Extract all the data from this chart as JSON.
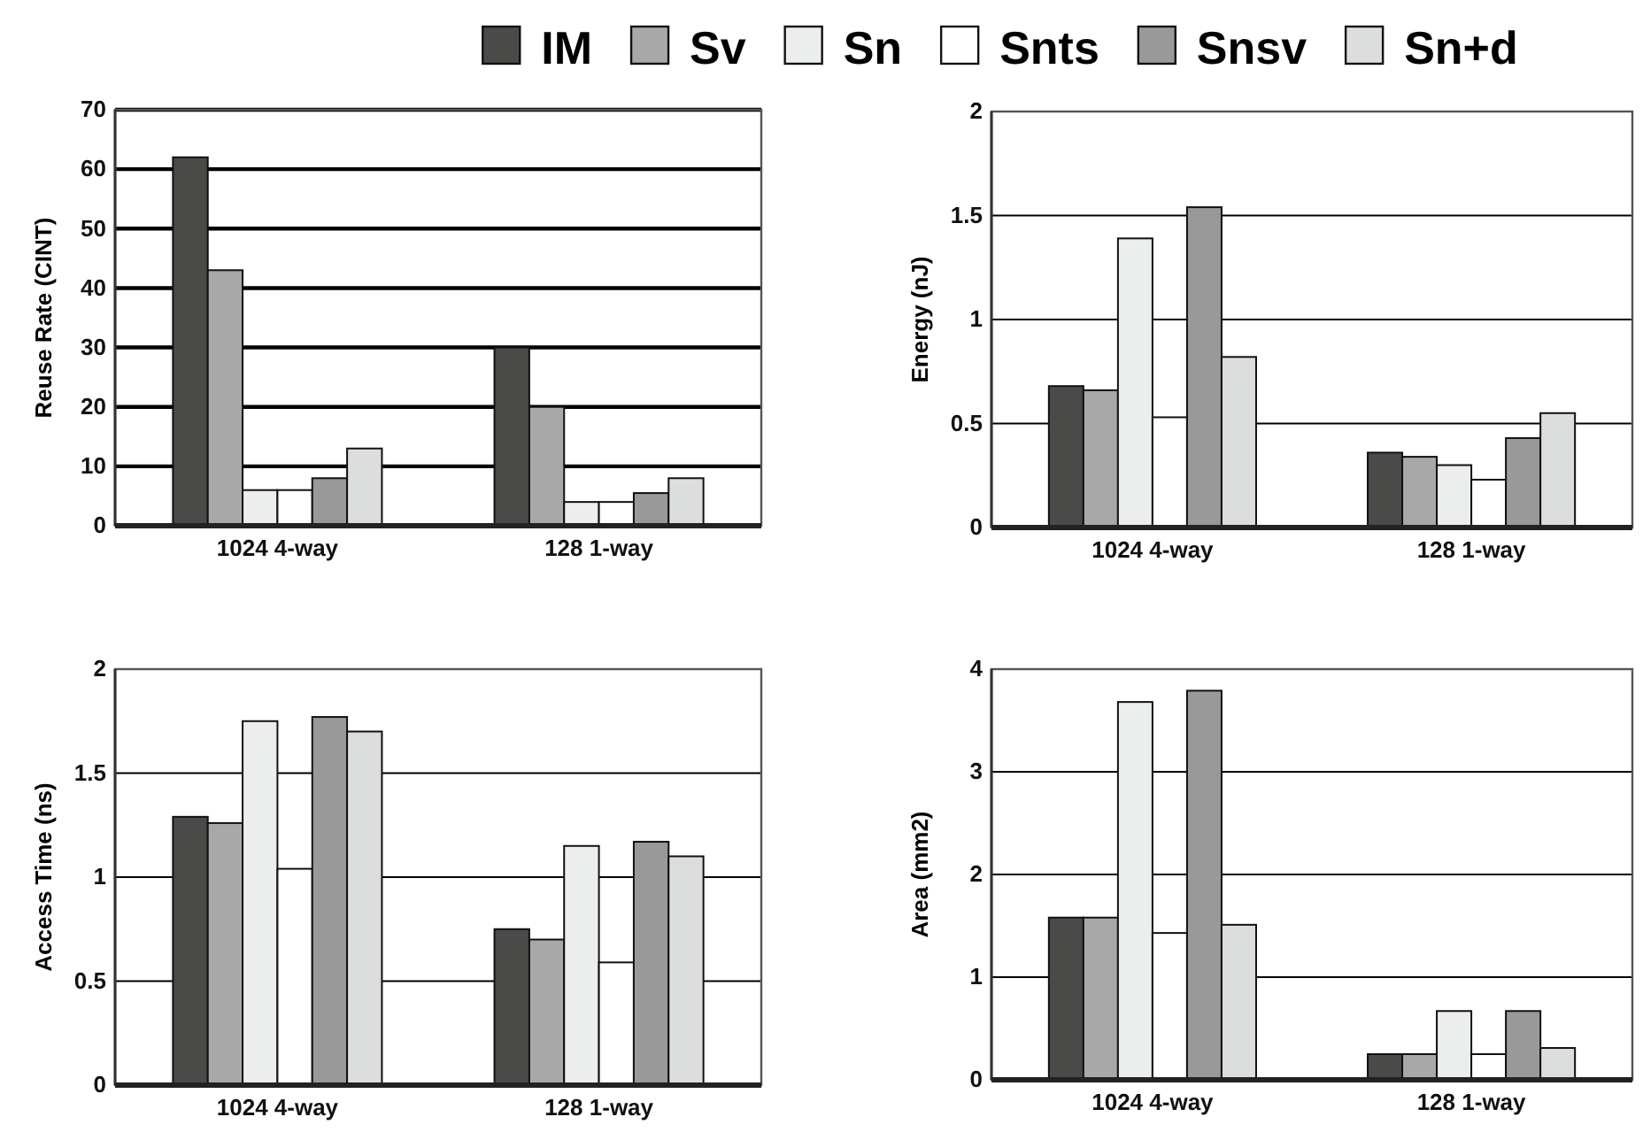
{
  "chart_data": [
    {
      "type": "bar",
      "ylabel": "Reuse Rate (CINT)",
      "categories": [
        "1024 4-way",
        "128 1-way"
      ],
      "ylim": [
        0,
        70
      ],
      "yticks": [
        0,
        10,
        20,
        30,
        40,
        50,
        60,
        70
      ],
      "grid": "y",
      "legend": "top",
      "series": [
        {
          "name": "IM",
          "color": "#4a4a48",
          "values": [
            62,
            30
          ]
        },
        {
          "name": "Sv",
          "color": "#a8a8a8",
          "values": [
            43,
            20
          ]
        },
        {
          "name": "Sn",
          "color": "#eceeed",
          "values": [
            6,
            4
          ]
        },
        {
          "name": "Snts",
          "color": "#ffffff",
          "values": [
            6,
            4
          ]
        },
        {
          "name": "Snsv",
          "color": "#989998",
          "values": [
            8,
            5.5
          ]
        },
        {
          "name": "Sn+d",
          "color": "#dcdedd",
          "values": [
            13,
            8
          ]
        }
      ]
    },
    {
      "type": "bar",
      "ylabel": "Energy (nJ)",
      "categories": [
        "1024 4-way",
        "128 1-way"
      ],
      "ylim": [
        0,
        2
      ],
      "yticks": [
        0,
        0.5,
        1,
        1.5,
        2
      ],
      "grid": "y",
      "series": [
        {
          "color": "#4a4a48",
          "values": [
            0.68,
            0.36
          ]
        },
        {
          "color": "#a8a8a8",
          "values": [
            0.66,
            0.34
          ]
        },
        {
          "color": "#eceeed",
          "values": [
            1.39,
            0.3
          ]
        },
        {
          "color": "#ffffff",
          "values": [
            0.53,
            0.23
          ]
        },
        {
          "color": "#989998",
          "values": [
            1.54,
            0.43
          ]
        },
        {
          "color": "#dcdedd",
          "values": [
            0.82,
            0.55
          ]
        }
      ]
    },
    {
      "type": "bar",
      "ylabel": "Access Time (ns)",
      "categories": [
        "1024 4-way",
        "128 1-way"
      ],
      "ylim": [
        0,
        2
      ],
      "yticks": [
        0,
        0.5,
        1,
        1.5,
        2
      ],
      "grid": "y",
      "series": [
        {
          "color": "#4a4a48",
          "values": [
            1.29,
            0.75
          ]
        },
        {
          "color": "#a8a8a8",
          "values": [
            1.26,
            0.7
          ]
        },
        {
          "color": "#eceeed",
          "values": [
            1.75,
            1.15
          ]
        },
        {
          "color": "#ffffff",
          "values": [
            1.04,
            0.59
          ]
        },
        {
          "color": "#989998",
          "values": [
            1.77,
            1.17
          ]
        },
        {
          "color": "#dcdedd",
          "values": [
            1.7,
            1.1
          ]
        }
      ]
    },
    {
      "type": "bar",
      "ylabel": "Area (mm2)",
      "categories": [
        "1024 4-way",
        "128 1-way"
      ],
      "ylim": [
        0,
        4
      ],
      "yticks": [
        0,
        1,
        2,
        3,
        4
      ],
      "grid": "y",
      "series": [
        {
          "color": "#4a4a48",
          "values": [
            1.58,
            0.25
          ]
        },
        {
          "color": "#a8a8a8",
          "values": [
            1.58,
            0.25
          ]
        },
        {
          "color": "#eceeed",
          "values": [
            3.68,
            0.67
          ]
        },
        {
          "color": "#ffffff",
          "values": [
            1.43,
            0.25
          ]
        },
        {
          "color": "#989998",
          "values": [
            3.79,
            0.67
          ]
        },
        {
          "color": "#dcdedd",
          "values": [
            1.51,
            0.31
          ]
        }
      ]
    }
  ]
}
